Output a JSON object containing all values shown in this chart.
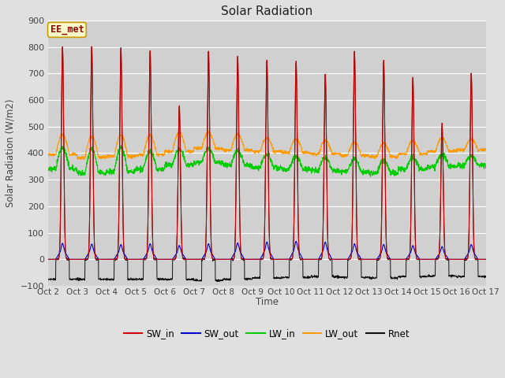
{
  "title": "Solar Radiation",
  "xlabel": "Time",
  "ylabel": "Solar Radiation (W/m2)",
  "ylim": [
    -100,
    900
  ],
  "yticks": [
    -100,
    0,
    100,
    200,
    300,
    400,
    500,
    600,
    700,
    800,
    900
  ],
  "n_days": 15,
  "pts_per_day": 144,
  "SW_in_peaks": [
    800,
    800,
    795,
    785,
    580,
    785,
    765,
    750,
    745,
    700,
    785,
    750,
    685,
    510,
    700
  ],
  "SW_out_peaks": [
    60,
    58,
    56,
    58,
    52,
    58,
    62,
    65,
    68,
    65,
    58,
    56,
    52,
    48,
    56
  ],
  "LW_in_base": [
    340,
    325,
    330,
    340,
    355,
    365,
    355,
    345,
    340,
    335,
    330,
    325,
    340,
    350,
    355
  ],
  "LW_in_peak": [
    420,
    415,
    420,
    405,
    415,
    415,
    408,
    395,
    388,
    382,
    378,
    373,
    383,
    393,
    388
  ],
  "LW_out_base": [
    395,
    383,
    388,
    393,
    407,
    418,
    412,
    407,
    402,
    397,
    392,
    387,
    397,
    407,
    412
  ],
  "LW_out_peak": [
    470,
    465,
    468,
    468,
    480,
    480,
    472,
    458,
    452,
    448,
    442,
    437,
    447,
    457,
    452
  ],
  "Rnet_night": [
    -75,
    -75,
    -75,
    -75,
    -75,
    -80,
    -75,
    -70,
    -68,
    -65,
    -68,
    -70,
    -65,
    -62,
    -65
  ],
  "Rnet_peaks": [
    800,
    800,
    795,
    785,
    575,
    785,
    760,
    745,
    740,
    695,
    780,
    745,
    680,
    505,
    698
  ],
  "colors": {
    "SW_in": "#cc0000",
    "SW_out": "#0000cc",
    "LW_in": "#00cc00",
    "LW_out": "#ff9900",
    "Rnet": "#111111"
  },
  "bg_color": "#e0e0e0",
  "plot_bg": "#d0d0d0",
  "annotation_text": "EE_met",
  "annotation_bg": "#ffffcc",
  "annotation_border": "#cc9900",
  "figsize": [
    6.4,
    4.8
  ],
  "dpi": 100
}
